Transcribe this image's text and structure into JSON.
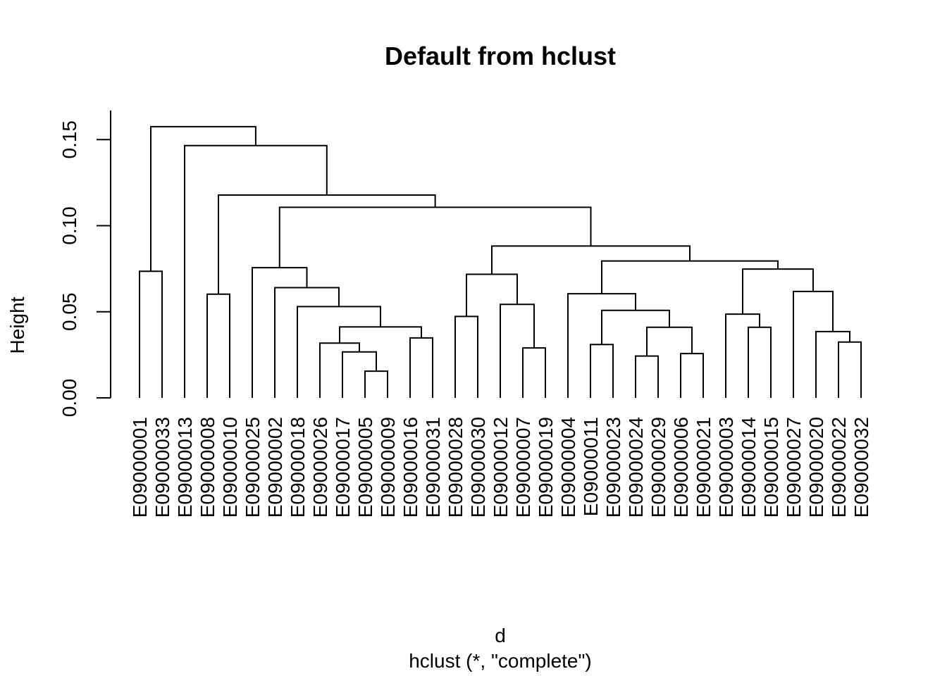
{
  "chart_data": {
    "type": "dendrogram",
    "title": "Default from hclust",
    "xlabel": "d",
    "sub": "hclust (*, \"complete\")",
    "ylabel": "Height",
    "ylim": [
      0,
      0.165
    ],
    "yticks": [
      0,
      0.05,
      0.1,
      0.15
    ],
    "ytick_labels": [
      "0.00",
      "0.05",
      "0.10",
      "0.15"
    ],
    "line_color": "#000000",
    "leaves": [
      "E09000001",
      "E09000033",
      "E09000013",
      "E09000008",
      "E09000010",
      "E09000025",
      "E09000002",
      "E09000018",
      "E09000026",
      "E09000017",
      "E09000005",
      "E09000009",
      "E09000016",
      "E09000031",
      "E09000028",
      "E09000030",
      "E09000012",
      "E09000007",
      "E09000019",
      "E09000004",
      "E09000011",
      "E09000023",
      "E09000024",
      "E09000029",
      "E09000006",
      "E09000021",
      "E09000003",
      "E09000014",
      "E09000015",
      "E09000027",
      "E09000020",
      "E09000022",
      "E09000032"
    ],
    "merges": [
      {
        "id": "m1",
        "left": "E09000001",
        "right": "E09000033",
        "height": 0.0735
      },
      {
        "id": "m2",
        "left": "E09000008",
        "right": "E09000010",
        "height": 0.0602
      },
      {
        "id": "m3",
        "left": "E09000005",
        "right": "E09000009",
        "height": 0.0155
      },
      {
        "id": "m4",
        "left": "E09000017",
        "right": "m3",
        "height": 0.0267
      },
      {
        "id": "m5",
        "left": "E09000026",
        "right": "m4",
        "height": 0.0318
      },
      {
        "id": "m6",
        "left": "E09000016",
        "right": "E09000031",
        "height": 0.0348
      },
      {
        "id": "m7",
        "left": "m5",
        "right": "m6",
        "height": 0.0412
      },
      {
        "id": "m8",
        "left": "E09000018",
        "right": "m7",
        "height": 0.053
      },
      {
        "id": "m9",
        "left": "E09000002",
        "right": "m8",
        "height": 0.064
      },
      {
        "id": "m10",
        "left": "E09000025",
        "right": "m9",
        "height": 0.0756
      },
      {
        "id": "m11",
        "left": "E09000028",
        "right": "E09000030",
        "height": 0.0473
      },
      {
        "id": "m12",
        "left": "E09000007",
        "right": "E09000019",
        "height": 0.029
      },
      {
        "id": "m13",
        "left": "E09000012",
        "right": "m12",
        "height": 0.0543
      },
      {
        "id": "m14",
        "left": "m11",
        "right": "m13",
        "height": 0.0718
      },
      {
        "id": "m15",
        "left": "E09000011",
        "right": "E09000023",
        "height": 0.031
      },
      {
        "id": "m16",
        "left": "E09000024",
        "right": "E09000029",
        "height": 0.0243
      },
      {
        "id": "m17",
        "left": "E09000006",
        "right": "E09000021",
        "height": 0.0257
      },
      {
        "id": "m18",
        "left": "m16",
        "right": "m17",
        "height": 0.041
      },
      {
        "id": "m19",
        "left": "m15",
        "right": "m18",
        "height": 0.0508
      },
      {
        "id": "m20",
        "left": "E09000004",
        "right": "m19",
        "height": 0.0605
      },
      {
        "id": "m21",
        "left": "E09000014",
        "right": "E09000015",
        "height": 0.041
      },
      {
        "id": "m22",
        "left": "E09000003",
        "right": "m21",
        "height": 0.0486
      },
      {
        "id": "m23",
        "left": "E09000022",
        "right": "E09000032",
        "height": 0.0324
      },
      {
        "id": "m24",
        "left": "E09000020",
        "right": "m23",
        "height": 0.0385
      },
      {
        "id": "m25",
        "left": "E09000027",
        "right": "m24",
        "height": 0.0618
      },
      {
        "id": "m26",
        "left": "m22",
        "right": "m25",
        "height": 0.0748
      },
      {
        "id": "m27",
        "left": "m20",
        "right": "m26",
        "height": 0.0795
      },
      {
        "id": "m28",
        "left": "m14",
        "right": "m27",
        "height": 0.0882
      },
      {
        "id": "m29",
        "left": "m10",
        "right": "m28",
        "height": 0.1107
      },
      {
        "id": "m30",
        "left": "m2",
        "right": "m29",
        "height": 0.1178
      },
      {
        "id": "m31",
        "left": "E09000013",
        "right": "m30",
        "height": 0.1465
      },
      {
        "id": "m32",
        "left": "m1",
        "right": "m31",
        "height": 0.1575
      }
    ]
  }
}
